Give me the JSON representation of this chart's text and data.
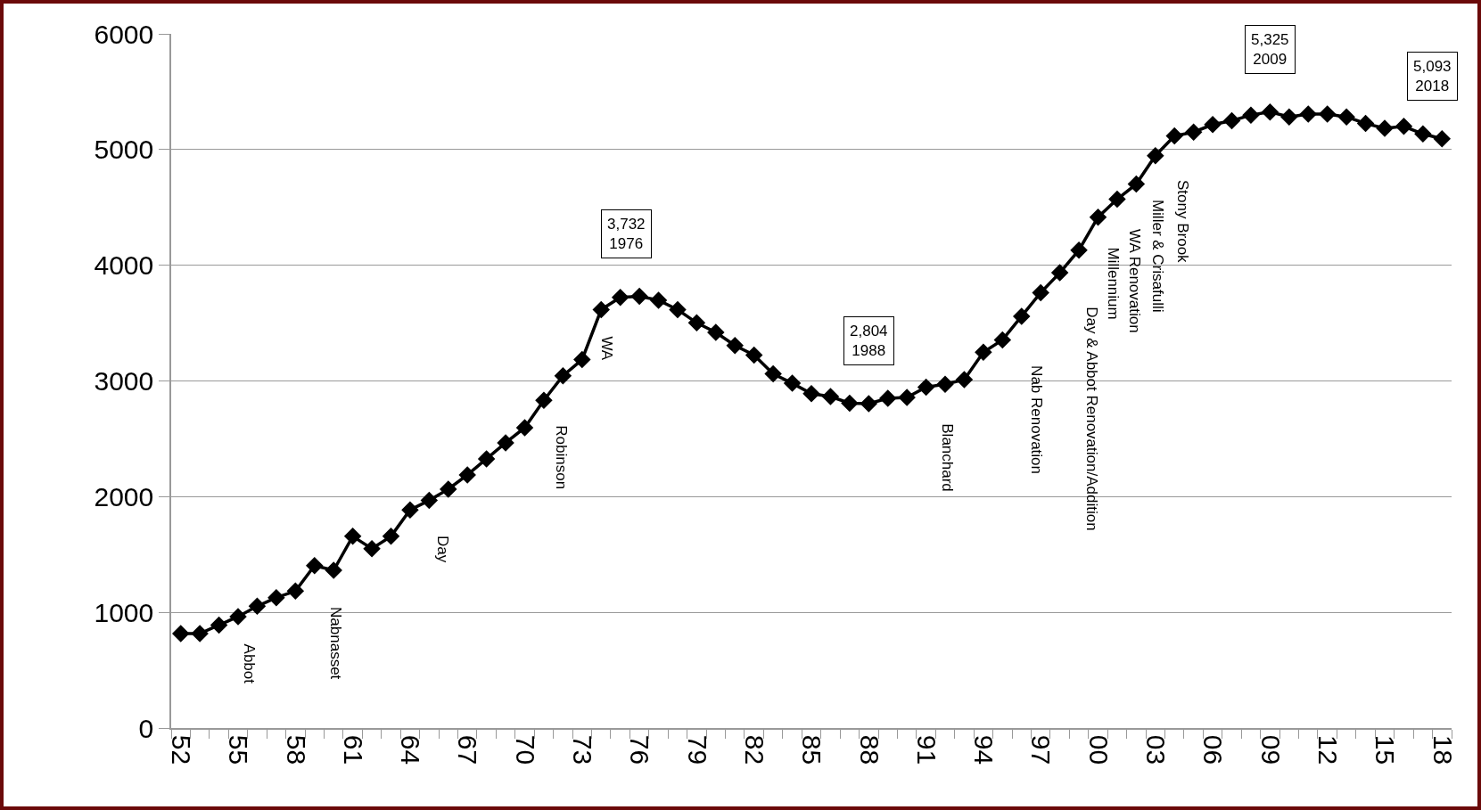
{
  "chart_data": {
    "type": "line",
    "categories": [
      "52",
      null,
      null,
      "55",
      null,
      null,
      "58",
      null,
      null,
      "61",
      null,
      null,
      "64",
      null,
      null,
      "67",
      null,
      null,
      "70",
      null,
      null,
      "73",
      null,
      null,
      "76",
      null,
      null,
      "79",
      null,
      null,
      "82",
      null,
      null,
      "85",
      null,
      null,
      "88",
      null,
      null,
      "91",
      null,
      null,
      "94",
      null,
      null,
      "97",
      null,
      null,
      "00",
      null,
      null,
      "03",
      null,
      null,
      "06",
      null,
      null,
      "09",
      null,
      null,
      "12",
      null,
      null,
      "15",
      null,
      null,
      "18"
    ],
    "series": [
      {
        "color": "#000000",
        "values": [
          816,
          816,
          890,
          963,
          1053,
          1127,
          1184,
          1404,
          1363,
          1657,
          1551,
          1657,
          1886,
          1967,
          2065,
          2188,
          2327,
          2465,
          2596,
          2833,
          3045,
          3184,
          3616,
          3722,
          3732,
          3698,
          3616,
          3502,
          3420,
          3306,
          3224,
          3061,
          2980,
          2890,
          2865,
          2808,
          2804,
          2849,
          2857,
          2947,
          2971,
          3012,
          3249,
          3355,
          3559,
          3763,
          3935,
          4131,
          4416,
          4571,
          4702,
          4947,
          5118,
          5151,
          5216,
          5249,
          5298,
          5325,
          5282,
          5306,
          5306,
          5282,
          5225,
          5184,
          5200,
          5135,
          5093
        ]
      }
    ],
    "ylim": [
      0,
      6000
    ],
    "yticks": [
      0,
      1000,
      2000,
      3000,
      4000,
      5000,
      6000
    ],
    "grid": "y",
    "marker": "diamond",
    "line_style": "solid",
    "annotations": [
      {
        "text": "3,732\n1976",
        "x": "76",
        "y": 3732
      },
      {
        "text": "2,804\n1988",
        "x": "88",
        "y": 2804
      },
      {
        "text": "5,325\n2009",
        "x": "09",
        "y": 5325
      },
      {
        "text": "5,093\n2018",
        "x": "18",
        "y": 5093
      },
      "Abbot",
      "Nabnasset",
      "Day",
      "Robinson",
      "WA",
      "Blanchard",
      "Nab Renovation",
      "Day & Abbot Renovation/Addition",
      "Millennium",
      "WA Renovation",
      "Miller & Crisafulli",
      "Stony Brook"
    ]
  }
}
